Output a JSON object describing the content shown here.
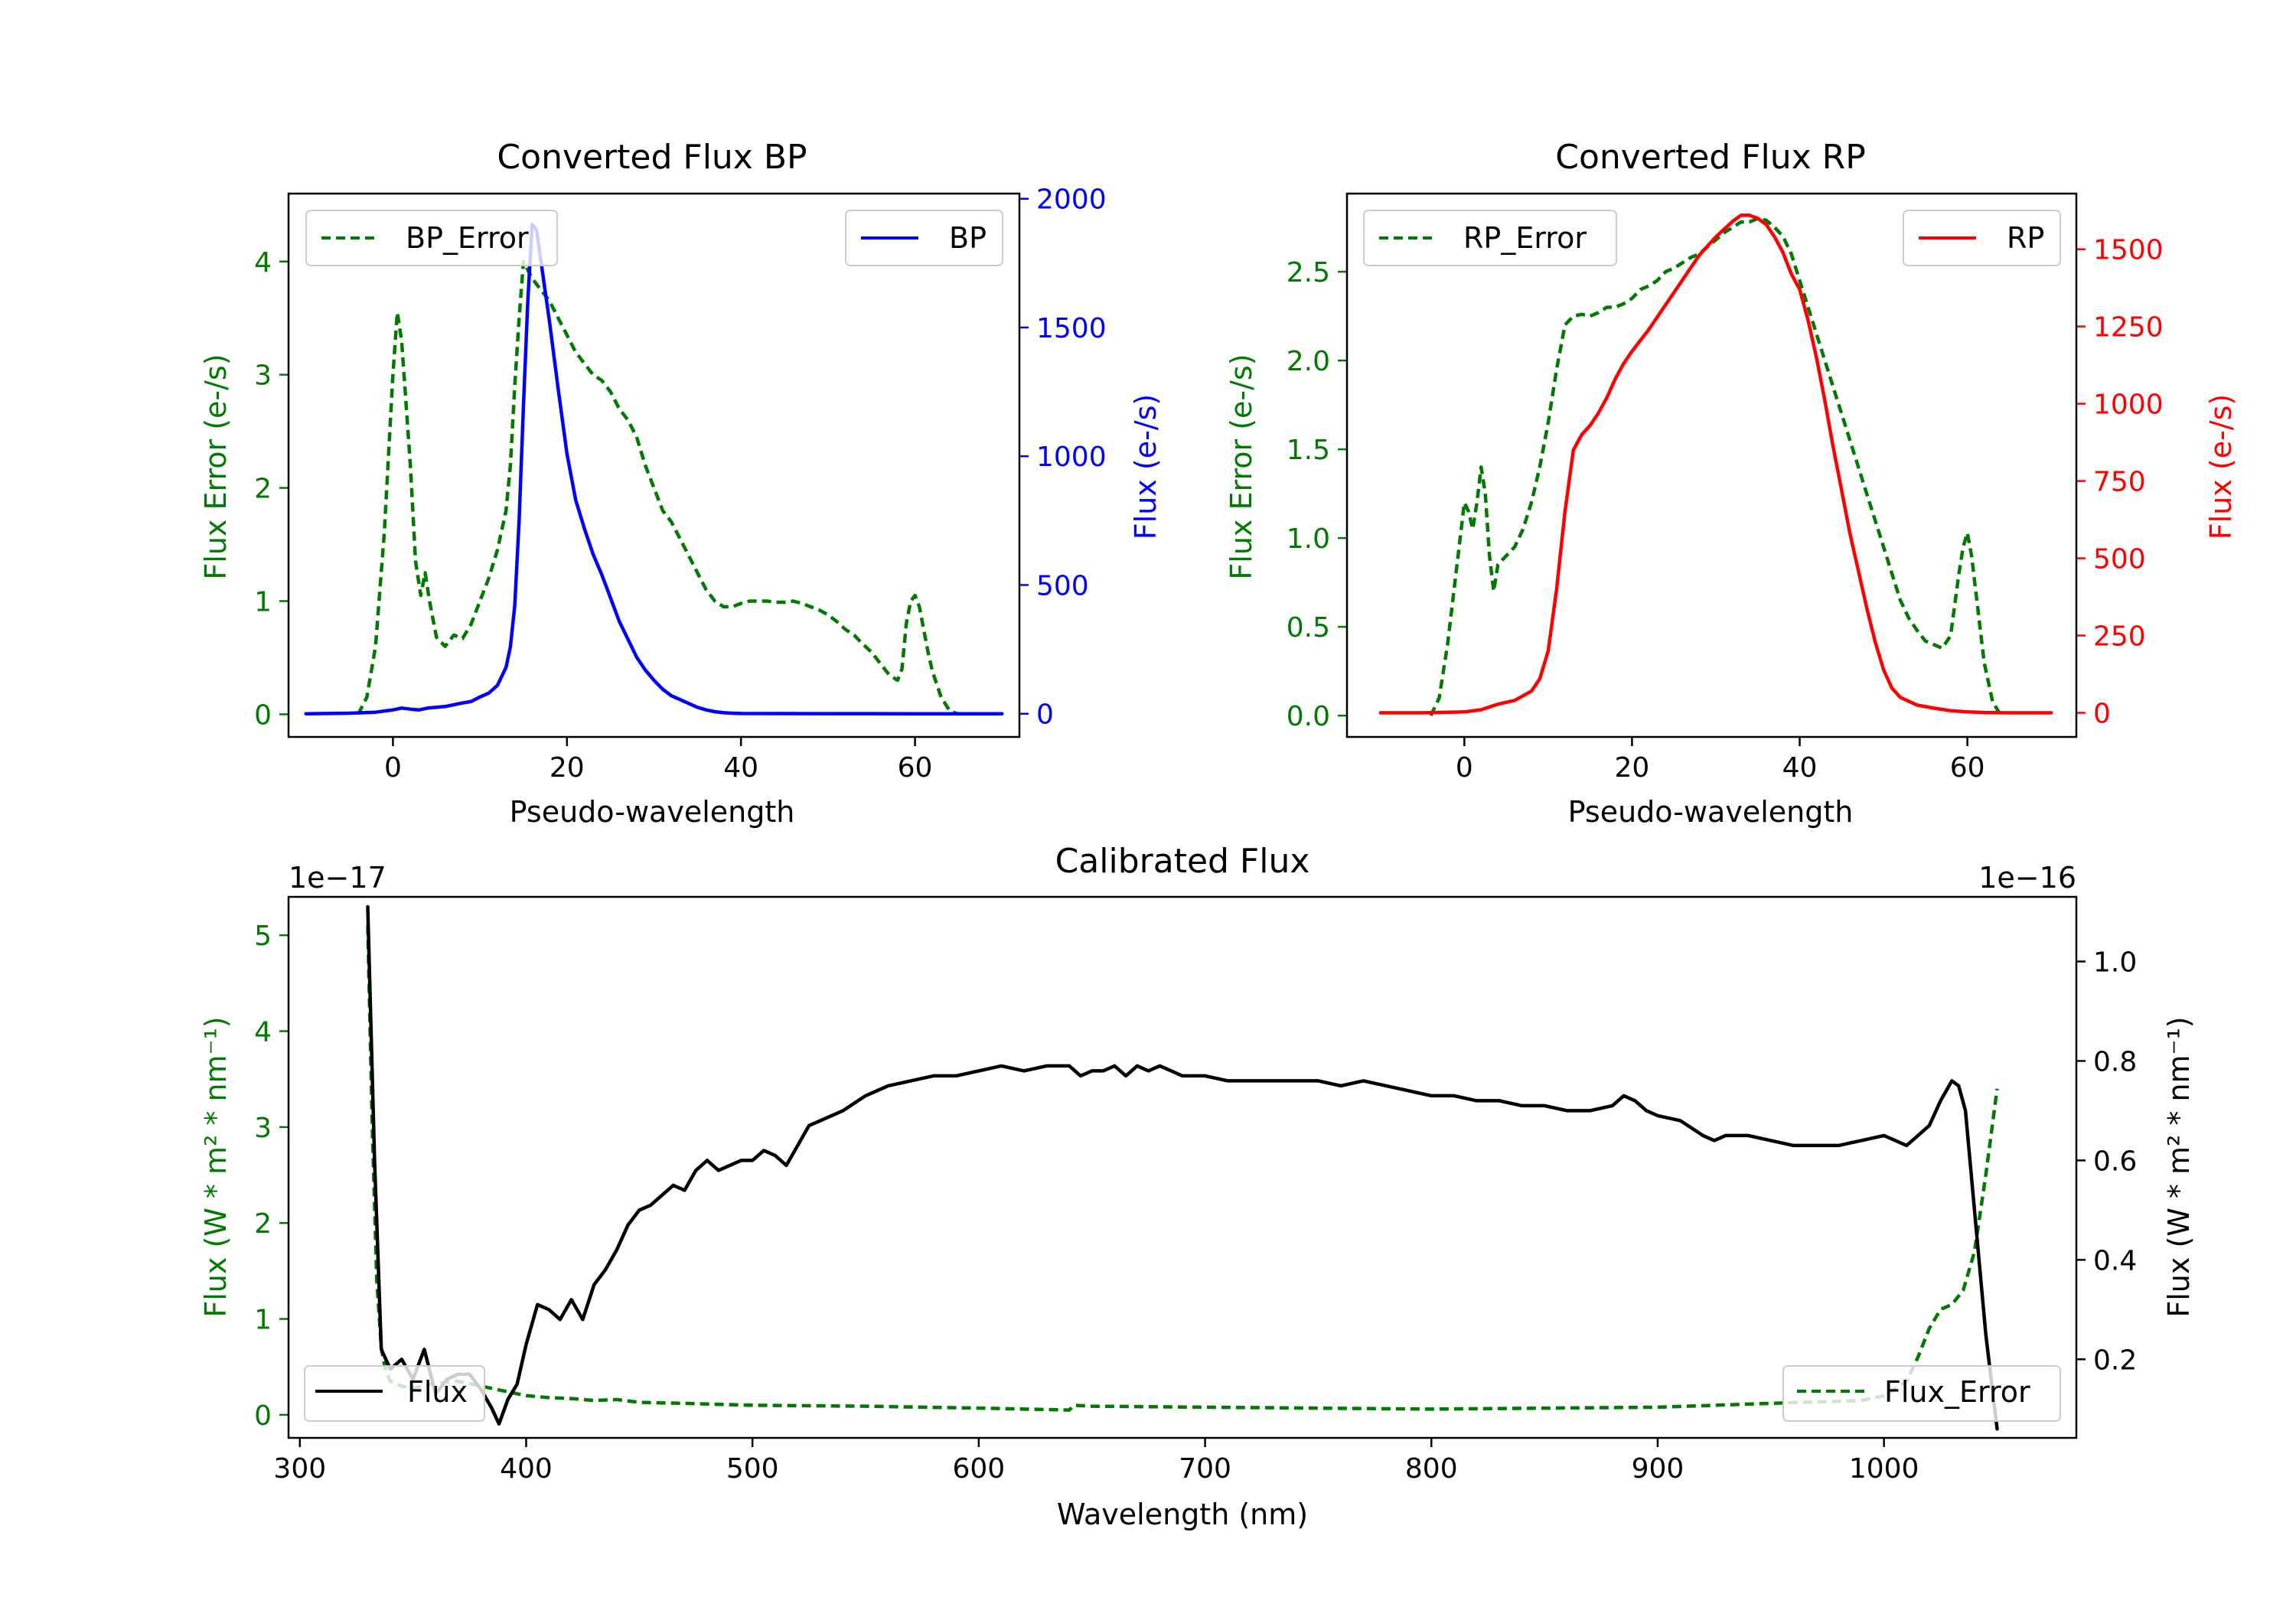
{
  "colors": {
    "bp": "#0000ff",
    "rp": "#ff0000",
    "error": "#007a00",
    "flux": "#000000",
    "axis": "#000000"
  },
  "chart_data": [
    {
      "id": "bp",
      "type": "line",
      "title": "Converted Flux BP",
      "xlabel": "Pseudo-wavelength",
      "ylabel_left": "Flux Error (e-/s)",
      "ylabel_right": "Flux (e-/s)",
      "xlim": [
        -12,
        72
      ],
      "ylim_left": [
        -0.2,
        4.6
      ],
      "ylim_right": [
        -90,
        2020
      ],
      "xticks": [
        0,
        20,
        40,
        60
      ],
      "yticks_left": [
        0,
        1,
        2,
        3,
        4
      ],
      "yticks_right": [
        0,
        500,
        1000,
        1500,
        2000
      ],
      "legend_left": {
        "label": "BP_Error",
        "position": "upper-left"
      },
      "legend_right": {
        "label": "BP",
        "position": "upper-right"
      },
      "series": [
        {
          "name": "BP_Error",
          "axis": "left",
          "style": "dashed",
          "color": "#007a00",
          "x": [
            -4,
            -3,
            -2,
            -1,
            0,
            0.5,
            1,
            2,
            2.6,
            3.2,
            3.7,
            4.2,
            5,
            6,
            7,
            8,
            9,
            10,
            11,
            12,
            13,
            13.5,
            14,
            14.5,
            15,
            16,
            17,
            18,
            19,
            20,
            21,
            22,
            23,
            24,
            25,
            26,
            27,
            28,
            29,
            30,
            31,
            32,
            33,
            34,
            35,
            36,
            37,
            38,
            39,
            40,
            41,
            42,
            43,
            44,
            45,
            46,
            47,
            48,
            49,
            50,
            51,
            52,
            53,
            54,
            55,
            56,
            57,
            58,
            58.5,
            59,
            59.5,
            60,
            60.5,
            61,
            61.5,
            62,
            63,
            64,
            65
          ],
          "values": [
            0,
            0.15,
            0.6,
            1.6,
            3.0,
            3.55,
            3.3,
            2.2,
            1.35,
            1.05,
            1.25,
            1.0,
            0.68,
            0.6,
            0.7,
            0.67,
            0.8,
            1.0,
            1.2,
            1.45,
            1.8,
            2.2,
            2.9,
            3.5,
            4.0,
            3.85,
            3.75,
            3.65,
            3.5,
            3.35,
            3.2,
            3.1,
            3.0,
            2.95,
            2.85,
            2.7,
            2.6,
            2.45,
            2.2,
            2.0,
            1.8,
            1.7,
            1.55,
            1.4,
            1.25,
            1.1,
            1.0,
            0.95,
            0.95,
            0.98,
            1.0,
            1.0,
            1.0,
            0.99,
            0.99,
            1.0,
            0.98,
            0.95,
            0.92,
            0.88,
            0.82,
            0.75,
            0.7,
            0.62,
            0.55,
            0.45,
            0.35,
            0.3,
            0.4,
            0.8,
            1.0,
            1.05,
            0.95,
            0.75,
            0.55,
            0.38,
            0.15,
            0.03,
            0
          ],
          "dash": "12,7"
        },
        {
          "name": "BP",
          "axis": "right",
          "style": "solid",
          "color": "#0000ff",
          "x": [
            -10,
            -5,
            -2,
            0,
            1,
            2,
            3,
            4,
            5,
            6,
            7,
            8,
            9,
            10,
            11,
            12,
            13,
            13.5,
            14,
            14.5,
            15,
            15.5,
            16,
            16.5,
            17,
            18,
            19,
            20,
            21,
            22,
            23,
            24,
            25,
            26,
            27,
            28,
            29,
            30,
            31,
            32,
            33,
            34,
            35,
            36,
            37,
            38,
            39,
            40,
            45,
            50,
            55,
            60,
            65,
            70
          ],
          "values": [
            0,
            2,
            6,
            15,
            22,
            18,
            15,
            22,
            25,
            28,
            35,
            42,
            48,
            65,
            80,
            110,
            180,
            260,
            420,
            750,
            1200,
            1600,
            1900,
            1880,
            1760,
            1520,
            1260,
            1010,
            830,
            720,
            620,
            540,
            450,
            360,
            290,
            220,
            170,
            130,
            95,
            70,
            55,
            40,
            25,
            15,
            8,
            4,
            2,
            1,
            0.5,
            0.3,
            0.2,
            0.1,
            0.05,
            0
          ]
        }
      ]
    },
    {
      "id": "rp",
      "type": "line",
      "title": "Converted Flux RP",
      "xlabel": "Pseudo-wavelength",
      "ylabel_left": "Flux Error (e-/s)",
      "ylabel_right": "Flux (e-/s)",
      "xlim": [
        -14,
        73
      ],
      "ylim_left": [
        -0.12,
        2.94
      ],
      "ylim_right": [
        -78,
        1680
      ],
      "xticks": [
        0,
        20,
        40,
        60
      ],
      "yticks_left": [
        0.0,
        0.5,
        1.0,
        1.5,
        2.0,
        2.5
      ],
      "yticks_right": [
        0,
        250,
        500,
        750,
        1000,
        1250,
        1500
      ],
      "legend_left": {
        "label": "RP_Error",
        "position": "upper-left"
      },
      "legend_right": {
        "label": "RP",
        "position": "upper-right"
      },
      "series": [
        {
          "name": "RP_Error",
          "axis": "left",
          "style": "dashed",
          "color": "#007a00",
          "x": [
            -4,
            -3,
            -2,
            -1,
            0,
            0.5,
            1,
            1.5,
            2,
            2.5,
            3,
            3.5,
            4,
            5,
            6,
            7,
            8,
            9,
            10,
            11,
            12,
            13,
            14,
            15,
            16,
            17,
            18,
            19,
            20,
            21,
            22,
            23,
            24,
            25,
            26,
            27,
            28,
            29,
            30,
            31,
            32,
            33,
            34,
            35,
            36,
            37,
            38,
            39,
            40,
            41,
            42,
            43,
            44,
            45,
            46,
            47,
            48,
            49,
            50,
            51,
            52,
            53,
            54,
            55,
            56,
            57,
            58,
            59,
            59.5,
            60,
            60.5,
            61,
            62,
            63,
            64
          ],
          "values": [
            0,
            0.1,
            0.4,
            0.8,
            1.2,
            1.15,
            1.05,
            1.2,
            1.4,
            1.25,
            0.9,
            0.7,
            0.85,
            0.9,
            0.95,
            1.05,
            1.2,
            1.4,
            1.65,
            1.95,
            2.2,
            2.25,
            2.26,
            2.25,
            2.27,
            2.3,
            2.3,
            2.32,
            2.35,
            2.4,
            2.42,
            2.45,
            2.5,
            2.52,
            2.55,
            2.58,
            2.6,
            2.64,
            2.68,
            2.72,
            2.75,
            2.78,
            2.78,
            2.8,
            2.79,
            2.75,
            2.7,
            2.6,
            2.45,
            2.3,
            2.15,
            2.0,
            1.85,
            1.7,
            1.55,
            1.4,
            1.25,
            1.1,
            0.95,
            0.8,
            0.65,
            0.55,
            0.48,
            0.42,
            0.4,
            0.38,
            0.45,
            0.8,
            0.95,
            1.03,
            0.9,
            0.7,
            0.3,
            0.08,
            0
          ],
          "dash": "12,7"
        },
        {
          "name": "RP",
          "axis": "right",
          "style": "solid",
          "color": "#ff0000",
          "x": [
            -10,
            -5,
            0,
            2,
            4,
            6,
            8,
            9,
            10,
            11,
            12,
            13,
            14,
            15,
            16,
            17,
            18,
            19,
            20,
            22,
            24,
            26,
            28,
            30,
            32,
            33,
            34,
            35,
            36,
            37,
            38,
            39,
            40,
            41,
            42,
            43,
            44,
            45,
            46,
            47,
            48,
            49,
            50,
            51,
            52,
            54,
            56,
            58,
            60,
            62,
            65,
            70
          ],
          "values": [
            0,
            0,
            3,
            10,
            28,
            40,
            70,
            110,
            200,
            400,
            650,
            850,
            900,
            930,
            970,
            1020,
            1080,
            1130,
            1170,
            1240,
            1320,
            1400,
            1480,
            1540,
            1590,
            1610,
            1610,
            1600,
            1580,
            1540,
            1490,
            1420,
            1370,
            1270,
            1150,
            1010,
            860,
            720,
            580,
            460,
            340,
            230,
            140,
            80,
            50,
            25,
            15,
            7,
            3,
            1,
            0,
            0
          ]
        }
      ]
    },
    {
      "id": "calibrated",
      "type": "line",
      "title": "Calibrated Flux",
      "xlabel": "Wavelength (nm)",
      "ylabel_left": "Flux (W * m² * nm⁻¹)",
      "ylabel_right": "Flux (W * m² * nm⁻¹)",
      "offset_left": "1e−17",
      "offset_right": "1e−16",
      "xlim": [
        295,
        1085
      ],
      "ylim_left": [
        -0.24,
        5.4
      ],
      "ylim_right": [
        0.042,
        1.13
      ],
      "xticks": [
        300,
        400,
        500,
        600,
        700,
        800,
        900,
        1000
      ],
      "yticks_left": [
        0,
        1,
        2,
        3,
        4,
        5
      ],
      "yticks_right": [
        0.2,
        0.4,
        0.6,
        0.8,
        1.0
      ],
      "legend_left": {
        "label": "Flux",
        "position": "lower-left"
      },
      "legend_right": {
        "label": "Flux_Error",
        "position": "lower-right"
      },
      "series": [
        {
          "name": "Flux_Error",
          "axis": "left",
          "style": "dashed",
          "color": "#007a00",
          "x": [
            330,
            332,
            334,
            336,
            338,
            340,
            345,
            350,
            355,
            360,
            370,
            380,
            390,
            400,
            410,
            420,
            430,
            440,
            450,
            470,
            500,
            550,
            600,
            640,
            642,
            650,
            700,
            800,
            900,
            950,
            990,
            1000,
            1010,
            1015,
            1020,
            1025,
            1030,
            1035,
            1040,
            1045,
            1050
          ],
          "values": [
            5.1,
            3.0,
            1.4,
            0.7,
            0.45,
            0.35,
            0.3,
            0.28,
            0.3,
            0.33,
            0.35,
            0.3,
            0.25,
            0.2,
            0.18,
            0.17,
            0.15,
            0.16,
            0.13,
            0.12,
            0.1,
            0.09,
            0.07,
            0.05,
            0.1,
            0.09,
            0.08,
            0.06,
            0.08,
            0.12,
            0.15,
            0.2,
            0.35,
            0.6,
            0.9,
            1.1,
            1.15,
            1.3,
            1.7,
            2.5,
            3.4
          ],
          "dash": "12,7"
        },
        {
          "name": "Flux",
          "axis": "right",
          "style": "solid",
          "color": "#000000",
          "x": [
            330,
            333,
            336,
            340,
            345,
            350,
            355,
            360,
            365,
            370,
            375,
            380,
            385,
            388,
            392,
            396,
            400,
            405,
            410,
            415,
            420,
            425,
            430,
            435,
            440,
            445,
            450,
            455,
            460,
            465,
            470,
            475,
            480,
            485,
            490,
            495,
            500,
            505,
            510,
            515,
            520,
            525,
            530,
            540,
            550,
            560,
            570,
            580,
            590,
            600,
            610,
            620,
            630,
            640,
            645,
            650,
            655,
            660,
            665,
            670,
            675,
            680,
            690,
            700,
            710,
            720,
            730,
            740,
            750,
            760,
            770,
            780,
            790,
            800,
            810,
            820,
            830,
            840,
            850,
            860,
            870,
            880,
            885,
            890,
            895,
            900,
            910,
            920,
            925,
            930,
            940,
            950,
            960,
            970,
            980,
            990,
            1000,
            1010,
            1020,
            1025,
            1030,
            1033,
            1036,
            1040,
            1045,
            1050
          ],
          "values": [
            1.11,
            0.6,
            0.22,
            0.18,
            0.2,
            0.16,
            0.22,
            0.13,
            0.16,
            0.17,
            0.17,
            0.14,
            0.1,
            0.07,
            0.12,
            0.15,
            0.23,
            0.31,
            0.3,
            0.28,
            0.32,
            0.28,
            0.35,
            0.38,
            0.42,
            0.47,
            0.5,
            0.51,
            0.53,
            0.55,
            0.54,
            0.58,
            0.6,
            0.58,
            0.59,
            0.6,
            0.6,
            0.62,
            0.61,
            0.59,
            0.63,
            0.67,
            0.68,
            0.7,
            0.73,
            0.75,
            0.76,
            0.77,
            0.77,
            0.78,
            0.79,
            0.78,
            0.79,
            0.79,
            0.77,
            0.78,
            0.78,
            0.79,
            0.77,
            0.79,
            0.78,
            0.79,
            0.77,
            0.77,
            0.76,
            0.76,
            0.76,
            0.76,
            0.76,
            0.75,
            0.76,
            0.75,
            0.74,
            0.73,
            0.73,
            0.72,
            0.72,
            0.71,
            0.71,
            0.7,
            0.7,
            0.71,
            0.73,
            0.72,
            0.7,
            0.69,
            0.68,
            0.65,
            0.64,
            0.65,
            0.65,
            0.64,
            0.63,
            0.63,
            0.63,
            0.64,
            0.65,
            0.63,
            0.67,
            0.72,
            0.76,
            0.75,
            0.7,
            0.5,
            0.25,
            0.06
          ]
        }
      ]
    }
  ]
}
